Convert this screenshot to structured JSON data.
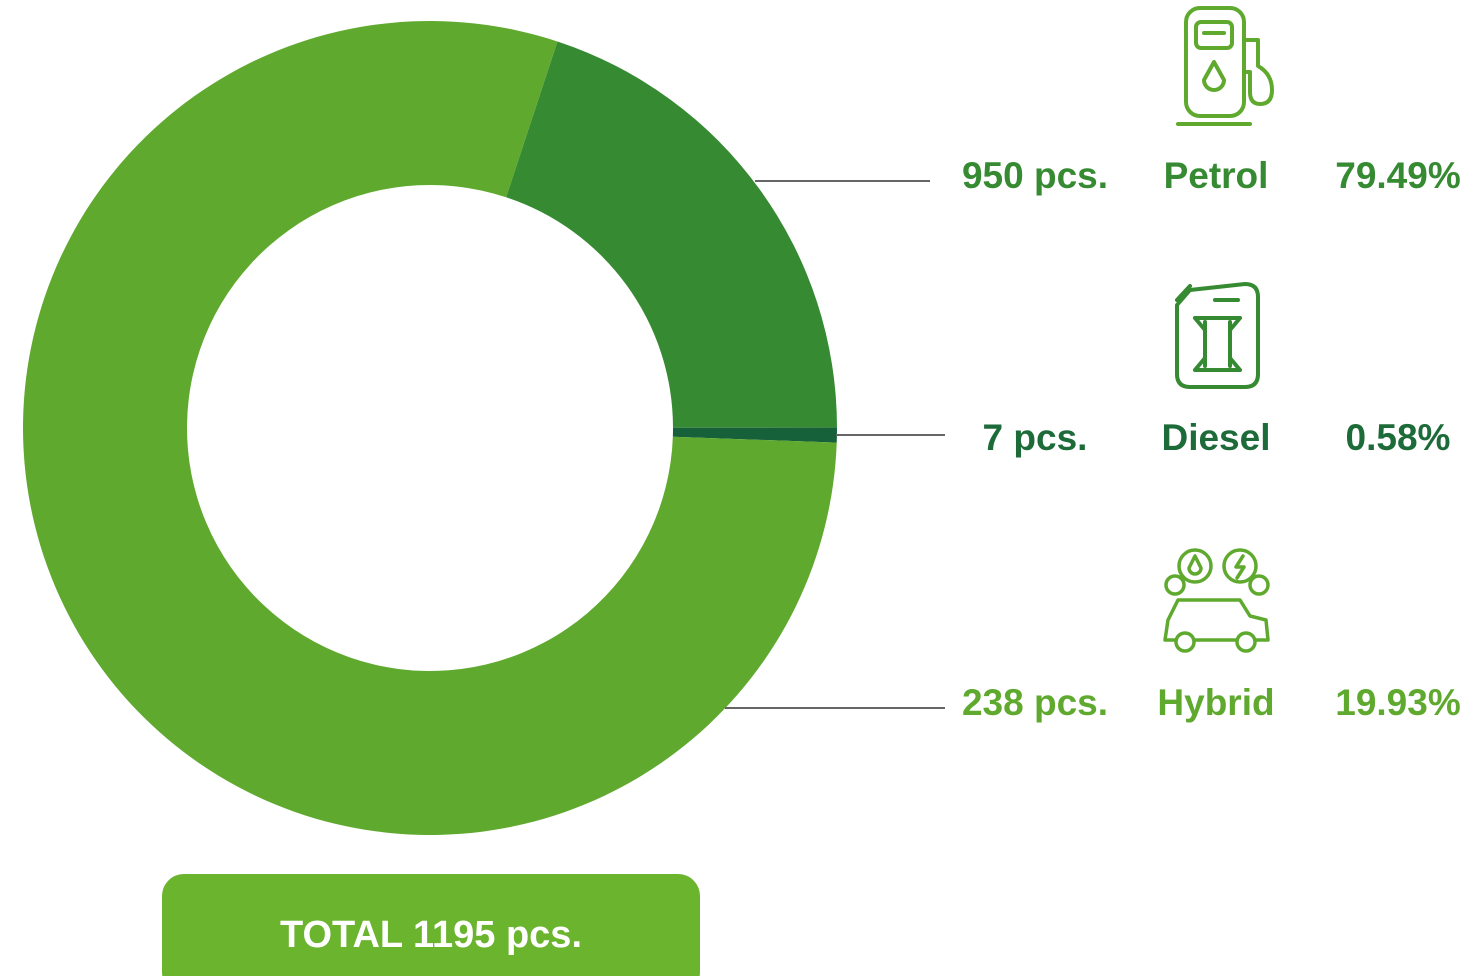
{
  "chart_data": {
    "type": "donut",
    "categories": [
      "Petrol",
      "Diesel",
      "Hybrid"
    ],
    "values": [
      950,
      7,
      238
    ],
    "value_labels": [
      "950 pcs.",
      "7 pcs.",
      "238 pcs."
    ],
    "percentages": [
      79.49,
      0.58,
      19.93
    ],
    "percentage_labels": [
      "79.49%",
      "0.58%",
      "19.93%"
    ],
    "colors": [
      "#5faa2e",
      "#16603a",
      "#358a32"
    ],
    "label_colors": [
      "#358a32",
      "#1e6b3a",
      "#5faa2e"
    ],
    "total_label": "TOTAL 1195 pcs."
  }
}
